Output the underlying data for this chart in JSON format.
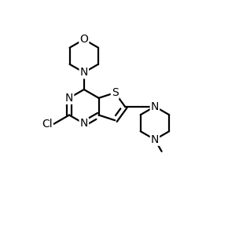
{
  "bg_color": "#ffffff",
  "line_color": "#000000",
  "line_width": 1.6,
  "figsize": [
    3.04,
    3.12
  ],
  "dpi": 100,
  "font_size": 10,
  "xlim": [
    0,
    10
  ],
  "ylim": [
    0,
    10.25
  ]
}
